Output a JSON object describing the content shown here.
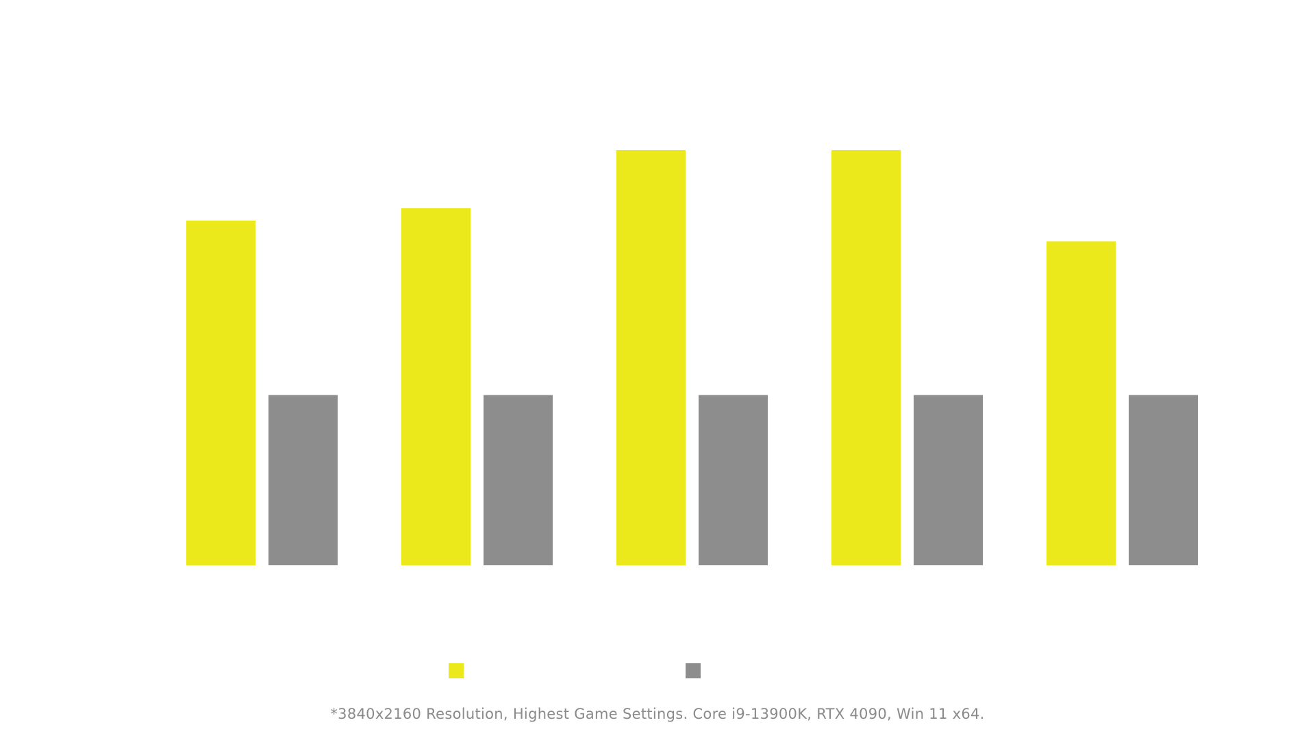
{
  "chart_data": {
    "type": "bar",
    "categories": [
      "",
      "",
      "",
      "",
      ""
    ],
    "series": [
      {
        "name": "",
        "color": "#EBE81C",
        "values": [
          83,
          86,
          100,
          100,
          78
        ]
      },
      {
        "name": "",
        "color": "#8D8D8E",
        "values": [
          41,
          41,
          41,
          41,
          41
        ]
      }
    ],
    "ylim": [
      0,
      100
    ],
    "grid": false,
    "legend_position": "bottom-center"
  },
  "footnote": "*3840x2160 Resolution, Highest Game Settings. Core i9-13900K, RTX 4090, Win 11 x64."
}
